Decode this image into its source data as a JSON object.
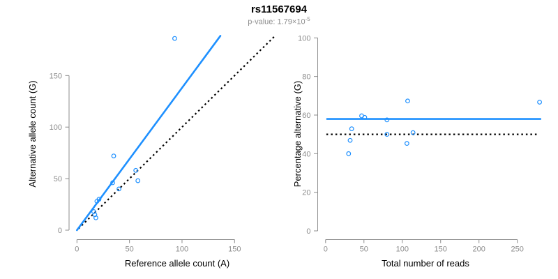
{
  "header": {
    "title": "rs11567694",
    "p_value_prefix": "p-value: 1.79×10",
    "p_value_exponent": "-5"
  },
  "colors": {
    "accent_blue": "#1E90FF",
    "axis_gray": "#8c8c8c",
    "dotted_black": "#000000"
  },
  "chart_data": [
    {
      "type": "scatter",
      "panel": "left",
      "xlabel": "Reference allele count (A)",
      "ylabel": "Alternative allele count (G)",
      "xticks": [
        0,
        50,
        100,
        150
      ],
      "yticks": [
        0,
        50,
        100,
        150
      ],
      "xlim": [
        0,
        190
      ],
      "ylim": [
        0,
        190
      ],
      "grid": false,
      "points": [
        [
          16,
          18
        ],
        [
          17,
          15
        ],
        [
          18,
          12
        ],
        [
          19,
          28
        ],
        [
          21,
          30
        ],
        [
          34,
          46
        ],
        [
          35,
          72
        ],
        [
          40,
          40
        ],
        [
          56,
          58
        ],
        [
          58,
          48
        ],
        [
          93,
          186
        ]
      ],
      "regression_line": {
        "x1": 0,
        "y1": 0,
        "x2": 136.5,
        "y2": 188.5,
        "slope": 1.381,
        "style": "solid"
      },
      "identity_line": {
        "x1": 1.5,
        "y1": 1.5,
        "x2": 188,
        "y2": 188,
        "style": "dotted"
      }
    },
    {
      "type": "scatter",
      "panel": "right",
      "xlabel": "Total number of reads",
      "ylabel": "Percentage alternative (G)",
      "xticks": [
        0,
        50,
        100,
        150,
        200,
        250
      ],
      "yticks": [
        0,
        20,
        40,
        60,
        80,
        100
      ],
      "xlim": [
        0,
        282
      ],
      "ylim": [
        0,
        100
      ],
      "grid": false,
      "points": [
        [
          34,
          52.9
        ],
        [
          32,
          46.9
        ],
        [
          30,
          40
        ],
        [
          47,
          59.6
        ],
        [
          51,
          58.8
        ],
        [
          80,
          57.5
        ],
        [
          107,
          67.3
        ],
        [
          80,
          50
        ],
        [
          114,
          50.9
        ],
        [
          106,
          45.3
        ],
        [
          279,
          66.7
        ]
      ],
      "mean_line": {
        "y": 58,
        "x1": 1,
        "x2": 281,
        "style": "solid"
      },
      "null_line": {
        "y": 50,
        "x1": 1,
        "x2": 276,
        "style": "dotted"
      }
    }
  ]
}
